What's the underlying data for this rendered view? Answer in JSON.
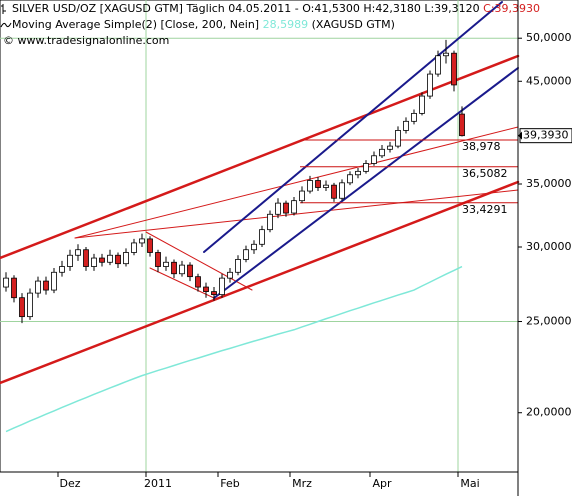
{
  "chart_data": {
    "type": "candlestick",
    "title": "SILVER USD/OZ [XAGUSD GTM]  Täglich 04.05.2011 - O:41,5300 H:42,3180 L:39,3120",
    "title_close": "C:39,3930",
    "indicator_name": "Moving Average Simple(2) [Close, 200, Nein]",
    "indicator_value": "28,5989",
    "indicator_source": "(XAGUSD GTM)",
    "copyright": "© www.tradesignalonline.com",
    "log_scale": true,
    "ylim": [
      17.3,
      54.9
    ],
    "yticks": [
      {
        "value": 50,
        "label": "50,0000"
      },
      {
        "value": 45,
        "label": "45,0000"
      },
      {
        "value": 35,
        "label": "35,0000"
      },
      {
        "value": 30,
        "label": "30,0000"
      },
      {
        "value": 25,
        "label": "25,0000"
      },
      {
        "value": 20,
        "label": "20,0000"
      }
    ],
    "ygrid": [
      50,
      25
    ],
    "xgrid": [
      18,
      57
    ],
    "grid_color": "#9fd49f",
    "categories": [
      null,
      null,
      null,
      null,
      null,
      null,
      null,
      "Dez",
      null,
      null,
      null,
      null,
      null,
      null,
      null,
      null,
      null,
      null,
      "2011",
      null,
      null,
      null,
      null,
      null,
      null,
      null,
      null,
      "Feb",
      null,
      null,
      null,
      null,
      null,
      null,
      null,
      null,
      "Mrz",
      null,
      null,
      null,
      null,
      null,
      null,
      null,
      null,
      null,
      "Apr",
      null,
      null,
      null,
      null,
      null,
      null,
      null,
      null,
      null,
      null,
      "Mai"
    ],
    "up_color": "#ffffff",
    "down_color": "#d42020",
    "open": [
      27.2,
      27.8,
      26.5,
      25.3,
      26.8,
      27.6,
      27.0,
      28.2,
      28.6,
      29.4,
      29.8,
      28.6,
      29.2,
      28.9,
      29.4,
      28.8,
      29.6,
      30.3,
      30.6,
      29.6,
      28.6,
      28.9,
      28.1,
      28.7,
      27.9,
      27.2,
      26.9,
      26.7,
      27.8,
      28.2,
      29.1,
      29.8,
      30.2,
      31.3,
      32.5,
      33.4,
      32.6,
      33.6,
      34.4,
      35.3,
      34.7,
      34.9,
      33.8,
      35.1,
      35.8,
      36.1,
      36.8,
      37.5,
      38.1,
      38.4,
      39.9,
      40.8,
      41.6,
      43.4,
      45.8,
      47.9,
      48.2,
      41.53
    ],
    "high": [
      28.2,
      28.0,
      26.8,
      27.1,
      27.9,
      27.9,
      28.5,
      29.0,
      29.8,
      30.2,
      30.0,
      29.5,
      29.5,
      29.8,
      29.6,
      29.9,
      30.6,
      31.0,
      30.8,
      29.8,
      29.3,
      29.1,
      29.0,
      28.9,
      28.1,
      27.5,
      27.2,
      28.1,
      28.5,
      29.4,
      30.1,
      30.5,
      31.6,
      32.8,
      33.8,
      33.6,
      33.9,
      34.8,
      35.7,
      35.6,
      35.3,
      35.1,
      35.4,
      36.1,
      36.4,
      37.1,
      37.9,
      38.5,
      38.8,
      40.3,
      41.2,
      42.0,
      43.8,
      46.2,
      48.5,
      49.8,
      48.5,
      42.318
    ],
    "low": [
      26.9,
      26.2,
      24.9,
      25.1,
      26.5,
      26.7,
      26.8,
      27.9,
      28.3,
      29.0,
      28.3,
      28.3,
      28.6,
      28.7,
      28.5,
      28.6,
      29.4,
      30.0,
      29.3,
      28.2,
      28.3,
      27.8,
      27.9,
      27.6,
      26.9,
      26.5,
      26.3,
      26.5,
      27.5,
      28.0,
      28.9,
      29.5,
      30.0,
      31.1,
      32.2,
      32.3,
      32.4,
      33.4,
      34.2,
      34.4,
      34.4,
      33.5,
      33.6,
      34.9,
      35.5,
      35.9,
      36.6,
      37.3,
      37.8,
      38.2,
      39.6,
      40.5,
      41.4,
      43.1,
      45.5,
      47.0,
      43.9,
      39.312
    ],
    "close": [
      27.8,
      26.5,
      25.3,
      26.8,
      27.6,
      27.0,
      28.2,
      28.6,
      29.4,
      29.8,
      28.6,
      29.2,
      28.9,
      29.4,
      28.8,
      29.6,
      30.3,
      30.6,
      29.6,
      28.6,
      28.9,
      28.1,
      28.7,
      27.9,
      27.2,
      26.9,
      26.7,
      27.8,
      28.2,
      29.1,
      29.8,
      30.2,
      31.3,
      32.5,
      33.4,
      32.6,
      33.6,
      34.4,
      35.3,
      34.7,
      34.9,
      33.8,
      35.1,
      35.8,
      36.1,
      36.8,
      37.5,
      38.1,
      38.4,
      39.9,
      40.8,
      41.6,
      43.4,
      45.8,
      47.9,
      48.2,
      44.6,
      39.393
    ],
    "last_label": "39,3930",
    "series": [
      {
        "name": "Moving Average Simple(2)",
        "color": "#7fe8d8",
        "values": [
          19.1,
          19.27,
          19.43,
          19.6,
          19.76,
          19.93,
          20.09,
          20.26,
          20.42,
          20.59,
          20.75,
          20.92,
          21.08,
          21.25,
          21.41,
          21.58,
          21.74,
          21.9,
          22.04,
          22.18,
          22.31,
          22.45,
          22.59,
          22.73,
          22.86,
          23.0,
          23.14,
          23.28,
          23.41,
          23.55,
          23.69,
          23.83,
          23.96,
          24.1,
          24.24,
          24.37,
          24.5,
          24.67,
          24.83,
          25.0,
          25.17,
          25.33,
          25.5,
          25.67,
          25.83,
          26.0,
          26.17,
          26.33,
          26.5,
          26.67,
          26.83,
          27.0,
          27.27,
          27.53,
          27.8,
          28.07,
          28.33,
          28.5989
        ]
      }
    ],
    "levels": [
      {
        "value": 38.978,
        "label": "38,978"
      },
      {
        "value": 36.5082,
        "label": "36,5082"
      },
      {
        "value": 33.4291,
        "label": "33,4291"
      }
    ],
    "level_color": "#cc1111"
  }
}
